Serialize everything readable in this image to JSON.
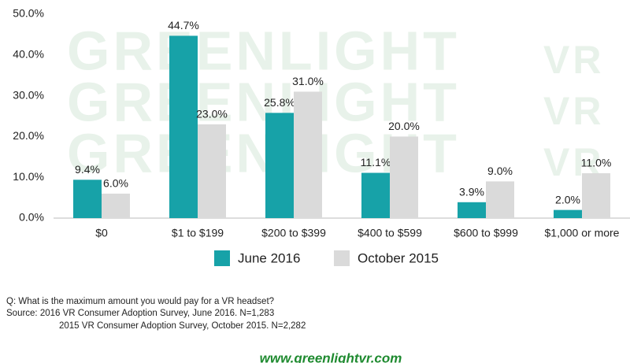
{
  "chart_data": {
    "type": "bar",
    "categories": [
      "$0",
      "$1 to $199",
      "$200 to $399",
      "$400 to $599",
      "$600 to $999",
      "$1,000 or more"
    ],
    "series": [
      {
        "name": "June 2016",
        "color": "#17a2a8",
        "values": [
          9.4,
          44.7,
          25.8,
          11.1,
          3.9,
          2.0
        ],
        "value_labels": [
          "9.4%",
          "44.7%",
          "25.8%",
          "11.1%",
          "3.9%",
          "2.0%"
        ]
      },
      {
        "name": "October 2015",
        "color": "#dadada",
        "values": [
          6.0,
          23.0,
          31.0,
          20.0,
          9.0,
          11.0
        ],
        "value_labels": [
          "6.0%",
          "23.0%",
          "31.0%",
          "20.0%",
          "9.0%",
          "11.0%"
        ]
      }
    ],
    "ylim": [
      0,
      50
    ],
    "yticks": [
      {
        "value": 0,
        "label": "0.0%"
      },
      {
        "value": 10,
        "label": "10.0%"
      },
      {
        "value": 20,
        "label": "20.0%"
      },
      {
        "value": 30,
        "label": "30.0%"
      },
      {
        "value": 40,
        "label": "40.0%"
      },
      {
        "value": 50,
        "label": "50.0%"
      }
    ],
    "grid": false,
    "legend": "bottom",
    "watermark": [
      "GREENLIGHT",
      "VR"
    ],
    "notes": [
      "Q: What is the maximum amount you would pay for a VR headset?",
      "Source: 2016 VR Consumer Adoption Survey, June 2016. N=1,283",
      "2015 VR Consumer Adoption Survey, October 2015. N=2,282"
    ],
    "website": "www.greenlightvr.com"
  }
}
